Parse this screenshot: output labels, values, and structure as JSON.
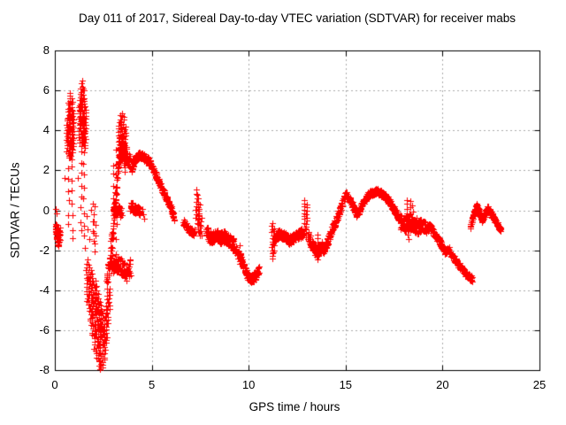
{
  "chart_data": {
    "type": "scatter",
    "title": "Day 011 of 2017, Sidereal Day-to-day VTEC variation (SDTVAR) for receiver mabs",
    "xlabel": "GPS time / hours",
    "ylabel": "SDTVAR / TECUs",
    "xlim": [
      0,
      25
    ],
    "ylim": [
      -8,
      8
    ],
    "xticks": [
      0,
      5,
      10,
      15,
      20,
      25
    ],
    "yticks": [
      -8,
      -6,
      -4,
      -2,
      0,
      2,
      4,
      6,
      8
    ],
    "grid": true,
    "legend": "none",
    "marker": {
      "shape": "plus",
      "color": "#ff0000",
      "size": 7
    },
    "colors": {
      "grid": "#aaaaaa",
      "border": "#000000",
      "text": "#000000",
      "background": "#ffffff"
    },
    "bands": [
      {
        "step": 0.012,
        "spread": 0.8,
        "n": 2,
        "anchors": [
          [
            0.02,
            -0.8
          ],
          [
            0.1,
            -1.25
          ],
          [
            0.18,
            -1.45
          ],
          [
            0.26,
            -1.15
          ]
        ]
      },
      {
        "step": 0.02,
        "spread": 1.1,
        "n": 2,
        "anchors": [
          [
            2.66,
            -3.5
          ],
          [
            2.8,
            -2.7
          ],
          [
            2.95,
            -1.3
          ],
          [
            3.1,
            0.5
          ],
          [
            3.25,
            2.0
          ],
          [
            3.38,
            3.3
          ]
        ]
      },
      {
        "step": 0.022,
        "spread": 0.85,
        "n": 2,
        "anchors": [
          [
            2.9,
            -2.6
          ],
          [
            3.1,
            -2.9
          ],
          [
            3.3,
            -2.7
          ],
          [
            3.5,
            -2.9
          ],
          [
            3.7,
            -3.1
          ],
          [
            3.92,
            -2.85
          ]
        ]
      },
      {
        "step": 0.024,
        "spread": 0.8,
        "n": 2,
        "anchors": [
          [
            3.5,
            3.3
          ],
          [
            3.7,
            2.75
          ],
          [
            3.92,
            2.4
          ]
        ]
      },
      {
        "step": 0.02,
        "spread": 0.5,
        "n": 2,
        "anchors": [
          [
            3.0,
            -0.05
          ],
          [
            3.2,
            0.05
          ],
          [
            3.45,
            -0.1
          ]
        ]
      },
      {
        "step": 0.02,
        "spread": 0.5,
        "n": 2,
        "anchors": [
          [
            3.9,
            0.2
          ],
          [
            4.15,
            0.1
          ],
          [
            4.4,
            -0.1
          ]
        ]
      },
      {
        "step": 0.018,
        "spread": 0.38,
        "n": 2,
        "anchors": [
          [
            3.95,
            2.1
          ],
          [
            4.15,
            2.55
          ],
          [
            4.35,
            2.75
          ],
          [
            4.6,
            2.65
          ],
          [
            4.95,
            2.35
          ]
        ]
      },
      {
        "step": 0.018,
        "spread": 0.3,
        "n": 2,
        "anchors": [
          [
            4.96,
            2.3
          ],
          [
            5.2,
            1.8
          ],
          [
            5.45,
            1.25
          ],
          [
            5.7,
            0.7
          ],
          [
            5.95,
            0.2
          ],
          [
            6.16,
            -0.42
          ]
        ]
      },
      {
        "step": 0.02,
        "spread": 0.35,
        "n": 2,
        "anchors": [
          [
            6.62,
            -0.6
          ],
          [
            6.85,
            -0.9
          ],
          [
            7.05,
            -1.05
          ],
          [
            7.18,
            -1.12
          ]
        ]
      },
      {
        "step": 0.018,
        "spread": 0.6,
        "n": 2,
        "anchors": [
          [
            7.8,
            -1.05
          ],
          [
            8.05,
            -1.4
          ],
          [
            8.3,
            -1.25
          ],
          [
            8.55,
            -1.35
          ],
          [
            8.8,
            -1.3
          ],
          [
            9.05,
            -1.55
          ],
          [
            9.3,
            -1.8
          ]
        ]
      },
      {
        "step": 0.018,
        "spread": 0.42,
        "n": 2,
        "anchors": [
          [
            9.32,
            -2.0
          ],
          [
            9.55,
            -2.35
          ],
          [
            9.75,
            -2.8
          ],
          [
            9.95,
            -3.25
          ],
          [
            10.15,
            -3.45
          ],
          [
            10.35,
            -3.25
          ],
          [
            10.52,
            -2.95
          ]
        ]
      },
      {
        "step": 0.018,
        "spread": 0.45,
        "n": 2,
        "anchors": [
          [
            11.35,
            -1.35
          ],
          [
            11.6,
            -1.15
          ],
          [
            11.85,
            -1.3
          ],
          [
            12.1,
            -1.5
          ],
          [
            12.35,
            -1.35
          ],
          [
            12.6,
            -1.2
          ],
          [
            12.82,
            -1.1
          ]
        ]
      },
      {
        "step": 0.018,
        "spread": 0.55,
        "n": 2,
        "anchors": [
          [
            13.05,
            -1.25
          ],
          [
            13.3,
            -1.75
          ],
          [
            13.5,
            -2.1
          ],
          [
            13.68,
            -1.9
          ],
          [
            13.82,
            -1.8
          ]
        ]
      },
      {
        "step": 0.018,
        "spread": 0.45,
        "n": 2,
        "anchors": [
          [
            13.85,
            -1.95
          ],
          [
            14.1,
            -1.45
          ],
          [
            14.35,
            -0.85
          ],
          [
            14.6,
            -0.25
          ],
          [
            14.85,
            0.4
          ]
        ]
      },
      {
        "step": 0.018,
        "spread": 0.35,
        "n": 2,
        "anchors": [
          [
            14.88,
            0.55
          ],
          [
            15.05,
            0.8
          ],
          [
            15.25,
            0.5
          ],
          [
            15.45,
            0.05
          ],
          [
            15.62,
            -0.35
          ]
        ]
      },
      {
        "step": 0.018,
        "spread": 0.32,
        "n": 2,
        "anchors": [
          [
            15.68,
            -0.1
          ],
          [
            15.9,
            0.4
          ],
          [
            16.15,
            0.75
          ],
          [
            16.4,
            0.92
          ],
          [
            16.65,
            0.95
          ],
          [
            16.9,
            0.8
          ],
          [
            17.15,
            0.6
          ],
          [
            17.33,
            0.35
          ]
        ]
      },
      {
        "step": 0.018,
        "spread": 0.3,
        "n": 2,
        "anchors": [
          [
            17.35,
            0.28
          ],
          [
            17.55,
            -0.05
          ],
          [
            17.77,
            -0.42
          ]
        ]
      },
      {
        "step": 0.016,
        "spread": 0.8,
        "n": 2,
        "anchors": [
          [
            17.8,
            -0.5
          ],
          [
            18.05,
            -0.7
          ],
          [
            18.3,
            -0.6
          ],
          [
            18.55,
            -0.75
          ],
          [
            18.87,
            -0.8
          ]
        ]
      },
      {
        "step": 0.02,
        "spread": 0.55,
        "n": 2,
        "anchors": [
          [
            18.9,
            -0.7
          ],
          [
            19.15,
            -0.85
          ],
          [
            19.45,
            -1.0
          ]
        ]
      },
      {
        "step": 0.018,
        "spread": 0.35,
        "n": 2,
        "anchors": [
          [
            19.5,
            -1.05
          ],
          [
            19.75,
            -1.4
          ],
          [
            20.0,
            -1.85
          ],
          [
            20.18,
            -2.1
          ],
          [
            20.3,
            -1.85
          ],
          [
            20.45,
            -2.2
          ]
        ]
      },
      {
        "step": 0.018,
        "spread": 0.3,
        "n": 2,
        "anchors": [
          [
            20.5,
            -2.3
          ],
          [
            20.75,
            -2.6
          ],
          [
            21.0,
            -2.95
          ],
          [
            21.3,
            -3.25
          ],
          [
            21.55,
            -3.45
          ]
        ]
      },
      {
        "step": 0.016,
        "spread": 0.3,
        "n": 2,
        "anchors": [
          [
            21.45,
            -0.8
          ],
          [
            21.6,
            -0.25
          ],
          [
            21.75,
            0.25
          ],
          [
            21.92,
            -0.15
          ],
          [
            22.05,
            -0.5
          ],
          [
            22.2,
            -0.1
          ],
          [
            22.35,
            0.1
          ],
          [
            22.55,
            -0.25
          ],
          [
            22.75,
            -0.55
          ],
          [
            23.0,
            -0.95
          ]
        ]
      }
    ],
    "columns": [
      [
        0.62,
        4.6,
        2.9,
        0.15
      ],
      [
        0.7,
        5.4,
        2.7,
        0.15
      ],
      [
        0.78,
        5.9,
        2.5,
        0.15
      ],
      [
        0.86,
        5.6,
        2.7,
        0.15
      ],
      [
        0.94,
        5.0,
        2.9,
        0.15
      ],
      [
        0.7,
        2.6,
        -1.2,
        0.55
      ],
      [
        0.88,
        2.7,
        -1.5,
        0.6
      ],
      [
        1.25,
        5.3,
        3.3,
        0.15
      ],
      [
        1.33,
        6.1,
        3.2,
        0.15
      ],
      [
        1.41,
        6.5,
        3.3,
        0.15
      ],
      [
        1.49,
        6.1,
        3.2,
        0.15
      ],
      [
        1.57,
        5.2,
        3.0,
        0.15
      ],
      [
        1.36,
        3.1,
        -1.6,
        0.6
      ],
      [
        1.5,
        3.0,
        -2.1,
        0.62
      ],
      [
        1.92,
        0.45,
        -1.3,
        0.5
      ],
      [
        2.0,
        0.3,
        -1.75,
        0.45
      ],
      [
        2.06,
        -0.8,
        -2.3,
        0.4
      ],
      [
        1.65,
        -2.5,
        -4.6,
        0.17
      ],
      [
        1.75,
        -2.7,
        -5.1,
        0.17
      ],
      [
        1.85,
        -3.0,
        -5.8,
        0.17
      ],
      [
        1.95,
        -3.2,
        -6.4,
        0.17
      ],
      [
        2.05,
        -3.5,
        -6.9,
        0.17
      ],
      [
        2.15,
        -3.8,
        -7.4,
        0.17
      ],
      [
        2.25,
        -4.2,
        -7.8,
        0.17
      ],
      [
        2.35,
        -4.6,
        -8.0,
        0.17
      ],
      [
        2.45,
        -5.0,
        -8.0,
        0.17
      ],
      [
        2.55,
        -5.3,
        -7.6,
        0.17
      ],
      [
        2.64,
        -4.8,
        -6.8,
        0.17
      ],
      [
        2.72,
        -4.3,
        -5.8,
        0.17
      ],
      [
        2.8,
        -3.9,
        -5.0,
        0.17
      ],
      [
        3.02,
        2.3,
        -2.7,
        0.6
      ],
      [
        3.16,
        3.1,
        -2.9,
        0.65
      ],
      [
        3.3,
        4.4,
        2.0,
        0.16
      ],
      [
        3.38,
        4.75,
        2.2,
        0.16
      ],
      [
        3.46,
        4.9,
        2.4,
        0.16
      ],
      [
        3.54,
        4.65,
        2.1,
        0.16
      ],
      [
        3.62,
        4.2,
        1.9,
        0.16
      ],
      [
        7.3,
        1.0,
        -0.6,
        0.2
      ],
      [
        7.38,
        0.75,
        -1.1,
        0.2
      ],
      [
        7.47,
        0.3,
        -1.35,
        0.2
      ],
      [
        7.56,
        -0.35,
        -1.3,
        0.22
      ],
      [
        9.55,
        -1.8,
        -2.7,
        0.3
      ],
      [
        11.22,
        -0.65,
        -2.55,
        0.15
      ],
      [
        11.3,
        -0.9,
        -2.3,
        0.18
      ],
      [
        12.9,
        0.5,
        -1.25,
        0.16
      ],
      [
        12.98,
        0.3,
        -1.35,
        0.16
      ],
      [
        13.55,
        -1.2,
        -2.45,
        0.2
      ],
      [
        18.15,
        0.55,
        -0.3,
        0.25
      ],
      [
        18.3,
        0.4,
        -0.45,
        0.25
      ],
      [
        18.45,
        0.2,
        -0.55,
        0.25
      ],
      [
        18.22,
        -0.95,
        -1.6,
        0.25
      ]
    ],
    "points": [
      [
        0.03,
        0.05
      ],
      [
        0.1,
        -0.15
      ],
      [
        0.5,
        1.6
      ],
      [
        1.2,
        1.6
      ],
      [
        1.65,
        -0.3
      ],
      [
        1.7,
        -0.95
      ],
      [
        1.76,
        -1.45
      ],
      [
        2.6,
        -6.5
      ],
      [
        4.5,
        0.05
      ],
      [
        4.56,
        -0.2
      ],
      [
        4.62,
        -0.42
      ],
      [
        10.55,
        -2.82
      ]
    ]
  }
}
